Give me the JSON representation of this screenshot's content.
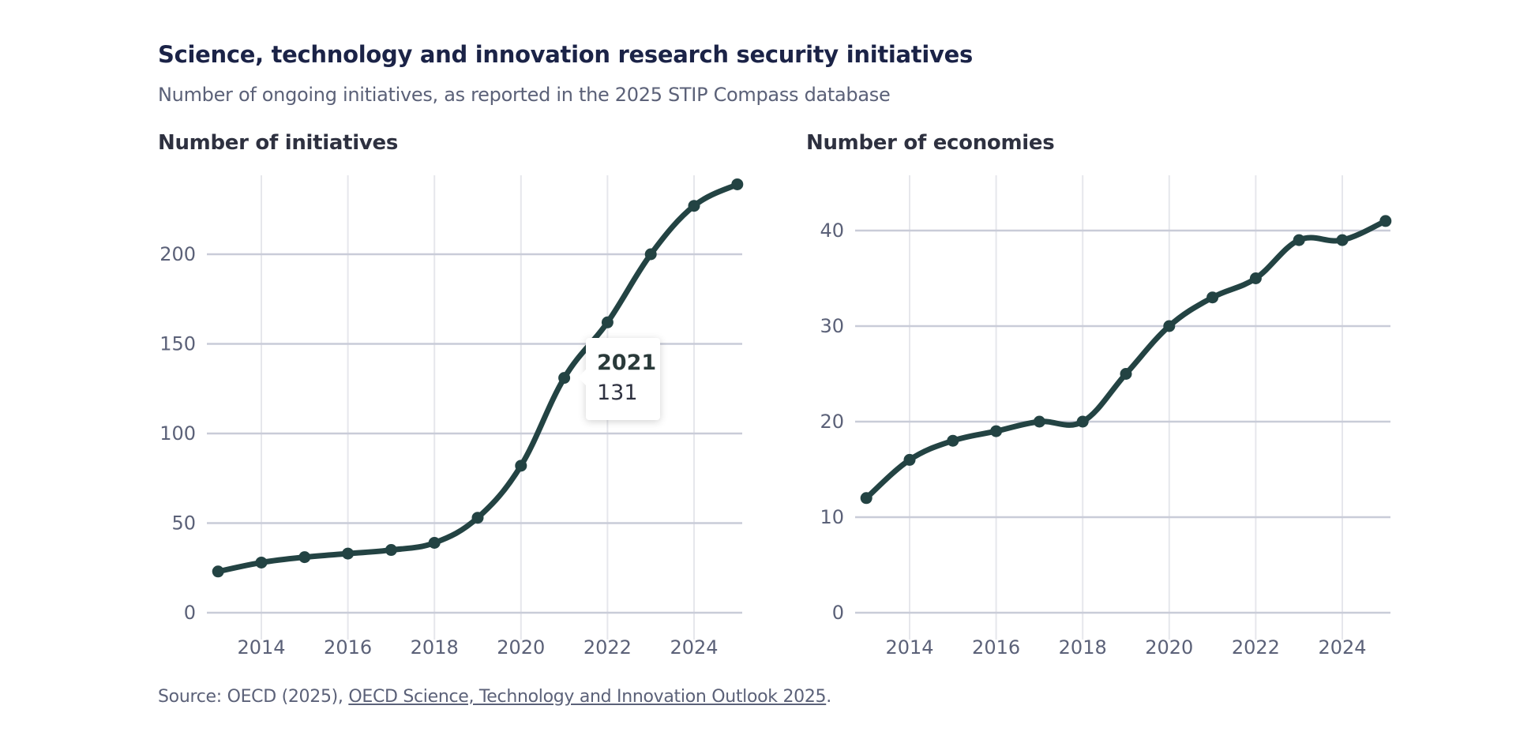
{
  "header": {
    "title": "Science, technology and innovation research security initiatives",
    "subtitle": "Number of ongoing initiatives, as reported in the 2025 STIP Compass database"
  },
  "footer": {
    "source_prefix": "Source: OECD (2025), ",
    "source_link": "OECD Science, Technology and Innovation Outlook 2025",
    "source_suffix": "."
  },
  "tooltip": {
    "year": "2021",
    "value": "131"
  },
  "colors": {
    "line": "#234343",
    "grid_h": "#c9ccd8",
    "grid_v": "#e6e7ec",
    "tick": "#5b6178"
  },
  "chart_data": [
    {
      "type": "line",
      "title": "Number of initiatives",
      "xlabel": "",
      "ylabel": "",
      "x": [
        2013,
        2014,
        2015,
        2016,
        2017,
        2018,
        2019,
        2020,
        2021,
        2022,
        2023,
        2024,
        2025
      ],
      "series": [
        {
          "name": "Number of initiatives",
          "values": [
            23,
            28,
            31,
            33,
            35,
            39,
            53,
            82,
            131,
            162,
            200,
            227,
            239
          ]
        }
      ],
      "xticks": [
        2014,
        2016,
        2018,
        2020,
        2022,
        2024
      ],
      "yticks": [
        0,
        50,
        100,
        150,
        200
      ],
      "xlim": [
        2012.4,
        2025.2
      ],
      "ylim": [
        0,
        245
      ],
      "grid": true,
      "legend": "none",
      "annotations": [
        {
          "type": "tooltip",
          "x": 2021,
          "text": "2021 / 131"
        }
      ]
    },
    {
      "type": "line",
      "title": "Number of economies",
      "xlabel": "",
      "ylabel": "",
      "x": [
        2013,
        2014,
        2015,
        2016,
        2017,
        2018,
        2019,
        2020,
        2021,
        2022,
        2023,
        2024,
        2025
      ],
      "series": [
        {
          "name": "Number of economies",
          "values": [
            12,
            16,
            18,
            19,
            20,
            20,
            25,
            30,
            33,
            35,
            39,
            39,
            41
          ]
        }
      ],
      "xticks": [
        2014,
        2016,
        2018,
        2020,
        2022,
        2024
      ],
      "yticks": [
        0,
        10,
        20,
        30,
        40
      ],
      "xlim": [
        2012.4,
        2025.2
      ],
      "ylim": [
        0,
        45.5
      ],
      "grid": true,
      "legend": "none"
    }
  ]
}
